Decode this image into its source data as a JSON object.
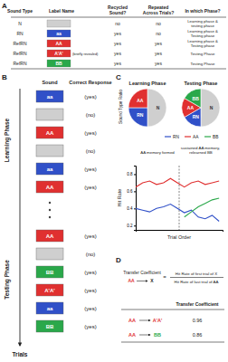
{
  "panel_labels": [
    "A",
    "B",
    "C",
    "D"
  ],
  "table_a": {
    "header": [
      [
        "Sound Type"
      ],
      [
        "Label Name"
      ],
      [
        "Recycled",
        "Sound?"
      ],
      [
        "Repeated",
        "Across Trials?"
      ],
      [
        "In which Phase?"
      ]
    ],
    "rows": [
      {
        "sound_type": "N",
        "label": null,
        "color": "#cfcfcf",
        "recycled": "no",
        "repeated": "no",
        "phase": [
          "Learning phase &",
          "testing phase"
        ]
      },
      {
        "sound_type": "RN",
        "label": "aa",
        "color": "#3050c8",
        "recycled": "yes",
        "repeated": "no",
        "phase": [
          "Learning phase &",
          "Testing phase"
        ]
      },
      {
        "sound_type": "RefRN",
        "label": "AA",
        "color": "#e03030",
        "recycled": "yes",
        "repeated": "yes",
        "phase": [
          "Learning phase &",
          "Testing phase"
        ]
      },
      {
        "sound_type": "RefRN",
        "label": "A'A'",
        "color": "#e03030",
        "note": "(briefly revealed)",
        "recycled": "yes",
        "repeated": "yes",
        "phase": [
          "Testing Phase"
        ]
      },
      {
        "sound_type": "RefRN",
        "label": "BB",
        "color": "#2aa84a",
        "recycled": "yes",
        "repeated": "yes",
        "phase": [
          "Testing Phase"
        ]
      }
    ]
  },
  "diagram_b": {
    "headers": [
      "Sound",
      "Correct Response"
    ],
    "phases": [
      "Learning Phase",
      "Testing Phase"
    ],
    "arrow_label": "Trials",
    "learning": [
      {
        "label": "aa",
        "response": "(yes)"
      },
      {
        "label": null,
        "response": "(no)"
      },
      {
        "label": "AA",
        "response": "(yes)"
      },
      {
        "label": null,
        "response": "(no)"
      },
      {
        "label": "aa",
        "response": "(yes)"
      },
      {
        "label": "AA",
        "response": "(yes)"
      }
    ],
    "testing": [
      {
        "label": "AA",
        "response": "(yes)"
      },
      {
        "label": null,
        "response": "(no)"
      },
      {
        "label": "BB",
        "response": "(yes)"
      },
      {
        "label": "A'A'",
        "response": "(yes)"
      },
      {
        "label": "aa",
        "response": "(yes)"
      },
      {
        "label": "BB",
        "response": "(yes)"
      }
    ]
  },
  "panel_c": {
    "pie_row_label": "Sound Type Ratio"
  },
  "chart_data": [
    {
      "type": "pie",
      "title": "Learning Phase",
      "categories": [
        "N",
        "RN",
        "AA"
      ],
      "values": [
        50,
        25,
        25
      ],
      "colors": [
        "#cfcfcf",
        "#3050c8",
        "#e03030"
      ]
    },
    {
      "type": "pie",
      "title": "Testing Phase",
      "categories": [
        "N",
        "RN",
        "AA",
        "BB"
      ],
      "values": [
        50,
        16.7,
        16.7,
        16.7
      ],
      "colors": [
        "#cfcfcf",
        "#3050c8",
        "#e03030",
        "#2aa84a"
      ]
    },
    {
      "type": "line",
      "xlabel": "Trial Order",
      "ylabel": "Hit Rate",
      "x": [
        0,
        8,
        16,
        24,
        32,
        40,
        48,
        56,
        64,
        72,
        80,
        88,
        96
      ],
      "series": [
        {
          "name": "RN",
          "color": "#3050c8",
          "values": [
            0.4,
            0.38,
            0.36,
            0.4,
            0.42,
            0.45,
            0.4,
            0.35,
            0.38,
            0.3,
            0.28,
            0.32,
            0.25
          ]
        },
        {
          "name": "AA",
          "color": "#e03030",
          "values": [
            0.65,
            0.7,
            0.72,
            0.68,
            0.7,
            0.75,
            0.7,
            0.65,
            0.7,
            0.72,
            0.68,
            0.7,
            0.72
          ]
        },
        {
          "name": "BB",
          "color": "#2aa84a",
          "values": [
            null,
            null,
            null,
            null,
            null,
            null,
            null,
            0.3,
            0.36,
            0.42,
            0.46,
            0.5,
            0.52
          ]
        }
      ],
      "xlim": [
        0,
        100
      ],
      "ylim": [
        0.15,
        0.9
      ],
      "yticks": [
        0.2,
        0.4,
        0.6,
        0.8
      ],
      "tick_labels": "y",
      "legend": "top",
      "phase_boundary": 50,
      "annotations": [
        "AA memory formed",
        "sustained AA memory, relearned BB"
      ]
    }
  ],
  "table_d": {
    "formula": {
      "title": "Transfer Coefficient",
      "from": "AA",
      "to": "X",
      "equals": "=",
      "numerator": "Hit Rate of first trial of X",
      "denominator": "Hit Rate of last trial of AA"
    },
    "header": "Transfer Coefficient",
    "rows": [
      {
        "from": "AA",
        "to": "A'A'",
        "value": 0.96
      },
      {
        "from": "AA",
        "to": "BB",
        "value": 0.86
      }
    ]
  }
}
